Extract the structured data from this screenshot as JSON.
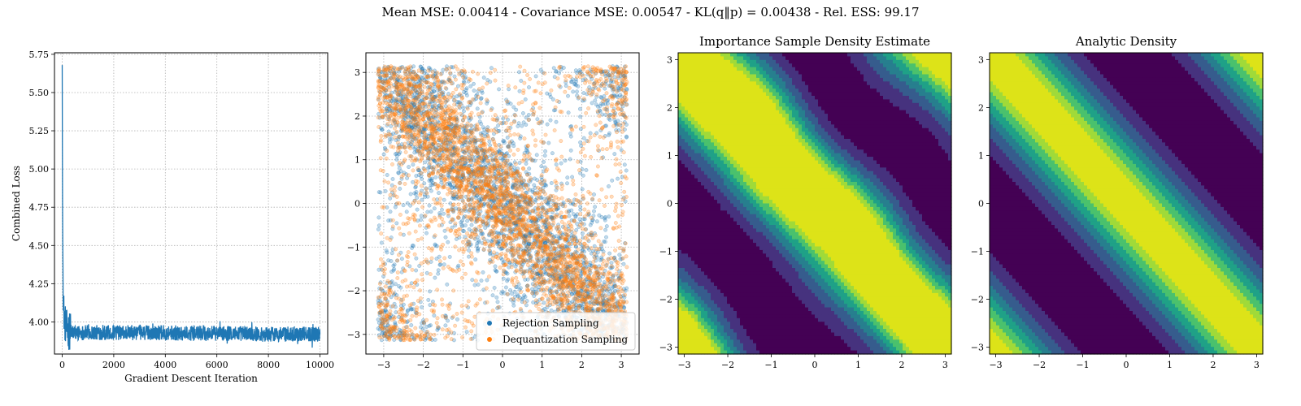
{
  "figure": {
    "suptitle": "Mean MSE: 0.00414 - Covariance MSE: 0.00547 - KL(q‖p) = 0.00438 - Rel. ESS: 99.17"
  },
  "chart_data": [
    {
      "type": "line",
      "title": "",
      "xlabel": "Gradient Descent Iteration",
      "ylabel": "Combined Loss",
      "xlim": [
        -300,
        10300
      ],
      "ylim": [
        3.79,
        5.76
      ],
      "xticks": [
        0,
        2000,
        4000,
        6000,
        8000,
        10000
      ],
      "yticks": [
        4.0,
        4.25,
        4.5,
        4.75,
        5.0,
        5.25,
        5.5,
        5.75
      ],
      "ytick_labels": [
        "4.00",
        "4.25",
        "4.50",
        "4.75",
        "5.00",
        "5.25",
        "5.50",
        "5.75"
      ],
      "grid": true,
      "series": [
        {
          "color": "#1f77b4",
          "x": [
            0,
            10,
            20,
            30,
            40,
            50,
            60,
            80,
            100,
            130,
            160,
            200,
            260,
            330,
            400,
            500,
            700,
            1000,
            2000,
            3000,
            4000,
            5000,
            6000,
            7000,
            8000,
            9000,
            10000
          ],
          "y": [
            5.68,
            4.9,
            4.55,
            4.35,
            4.22,
            4.13,
            4.08,
            4.03,
            4.0,
            3.98,
            3.96,
            3.95,
            3.94,
            3.94,
            3.93,
            3.93,
            3.93,
            3.93,
            3.93,
            3.93,
            3.93,
            3.925,
            3.925,
            3.925,
            3.92,
            3.92,
            3.92
          ],
          "noise_band": [
            3.88,
            3.99
          ]
        }
      ]
    },
    {
      "type": "scatter",
      "title": "",
      "xlim": [
        -3.45,
        3.45
      ],
      "ylim": [
        -3.45,
        3.45
      ],
      "xticks": [
        -3,
        -2,
        -1,
        0,
        1,
        2,
        3
      ],
      "yticks": [
        -3,
        -2,
        -1,
        0,
        1,
        2,
        3
      ],
      "grid": true,
      "legend": "lower-right",
      "series": [
        {
          "name": "Rejection Sampling",
          "color": "#1f77b4",
          "n_points": 3200,
          "band_sigma": 0.95,
          "density_fraction": 0.85
        },
        {
          "name": "Dequantization Sampling",
          "color": "#ff7f0e",
          "n_points": 3600,
          "band_sigma": 0.75,
          "density_fraction": 0.8
        }
      ]
    },
    {
      "type": "heatmap",
      "title": "Importance Sample Density Estimate",
      "xlim": [
        -3.14159,
        3.14159
      ],
      "ylim": [
        -3.14159,
        3.14159
      ],
      "xticks": [
        -3,
        -2,
        -1,
        0,
        1,
        2,
        3
      ],
      "yticks": [
        -3,
        -2,
        -1,
        0,
        1,
        2,
        3
      ],
      "levels": 8,
      "colormap": [
        "#440154",
        "#46327e",
        "#365c8d",
        "#277f8e",
        "#1fa187",
        "#4ac16d",
        "#a0da39",
        "#dde318"
      ],
      "band_width": 1.05,
      "noisy": true
    },
    {
      "type": "heatmap",
      "title": "Analytic Density",
      "xlim": [
        -3.14159,
        3.14159
      ],
      "ylim": [
        -3.14159,
        3.14159
      ],
      "xticks": [
        -3,
        -2,
        -1,
        0,
        1,
        2,
        3
      ],
      "yticks": [
        -3,
        -2,
        -1,
        0,
        1,
        2,
        3
      ],
      "levels": 8,
      "colormap": [
        "#440154",
        "#46327e",
        "#365c8d",
        "#277f8e",
        "#1fa187",
        "#4ac16d",
        "#a0da39",
        "#dde318"
      ],
      "band_width": 1.05,
      "noisy": false
    }
  ]
}
